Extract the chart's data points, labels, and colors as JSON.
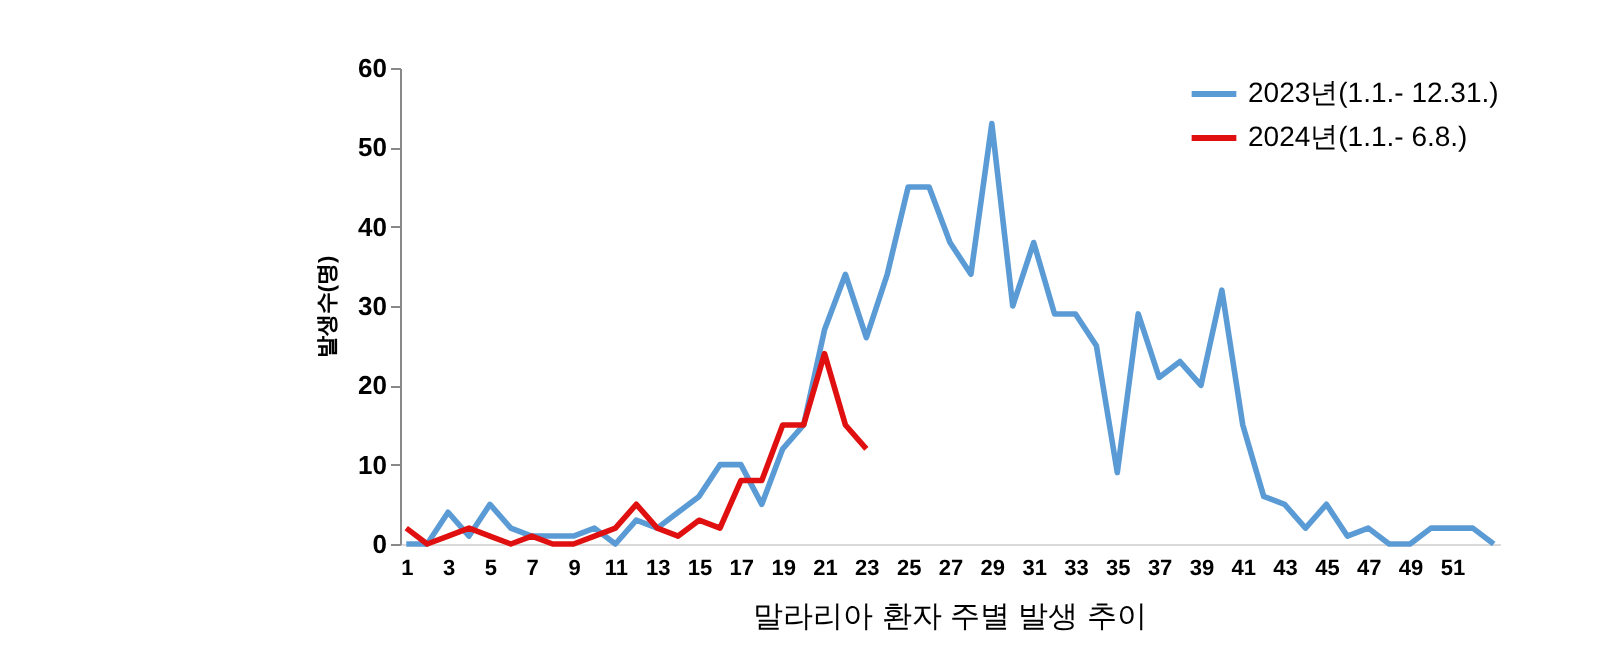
{
  "chart_data": {
    "type": "line",
    "title": "말라리아 환자 주별 발생 추이",
    "ylabel": "발생수(명)",
    "x": [
      1,
      2,
      3,
      4,
      5,
      6,
      7,
      8,
      9,
      10,
      11,
      12,
      13,
      14,
      15,
      16,
      17,
      18,
      19,
      20,
      21,
      22,
      23,
      24,
      25,
      26,
      27,
      28,
      29,
      30,
      31,
      32,
      33,
      34,
      35,
      36,
      37,
      38,
      39,
      40,
      41,
      42,
      43,
      44,
      45,
      46,
      47,
      48,
      49,
      50,
      51,
      52,
      53
    ],
    "xlim": [
      0.7,
      53.3
    ],
    "xticks": [
      1,
      3,
      5,
      7,
      9,
      11,
      13,
      15,
      17,
      19,
      21,
      23,
      25,
      27,
      29,
      31,
      33,
      35,
      37,
      39,
      41,
      43,
      45,
      47,
      49,
      51
    ],
    "ylim": [
      0,
      60
    ],
    "yticks": [
      0,
      10,
      20,
      30,
      40,
      50,
      60
    ],
    "grid": false,
    "legend": "top right",
    "marker": "none",
    "line_style": "solid",
    "series": [
      {
        "name": "2023년(1.1.- 12.31.)",
        "color": "#5b9bd5",
        "values": [
          0,
          0,
          4,
          1,
          5,
          2,
          1,
          1,
          1,
          2,
          0,
          3,
          2,
          4,
          6,
          10,
          10,
          5,
          12,
          15,
          27,
          34,
          26,
          34,
          45,
          45,
          38,
          34,
          53,
          30,
          38,
          29,
          29,
          25,
          9,
          29,
          21,
          23,
          20,
          32,
          15,
          6,
          5,
          2,
          5,
          1,
          2,
          0,
          0,
          2,
          2,
          2,
          0
        ]
      },
      {
        "name": "2024년(1.1.- 6.8.)",
        "color": "#e01010",
        "x": [
          1,
          2,
          3,
          4,
          5,
          6,
          7,
          8,
          9,
          10,
          11,
          12,
          13,
          14,
          15,
          16,
          17,
          18,
          19,
          20,
          21,
          22,
          23
        ],
        "values": [
          2,
          0,
          1,
          2,
          1,
          0,
          1,
          0,
          0,
          1,
          2,
          5,
          2,
          1,
          3,
          2,
          8,
          8,
          15,
          15,
          24,
          15,
          12
        ]
      }
    ]
  }
}
